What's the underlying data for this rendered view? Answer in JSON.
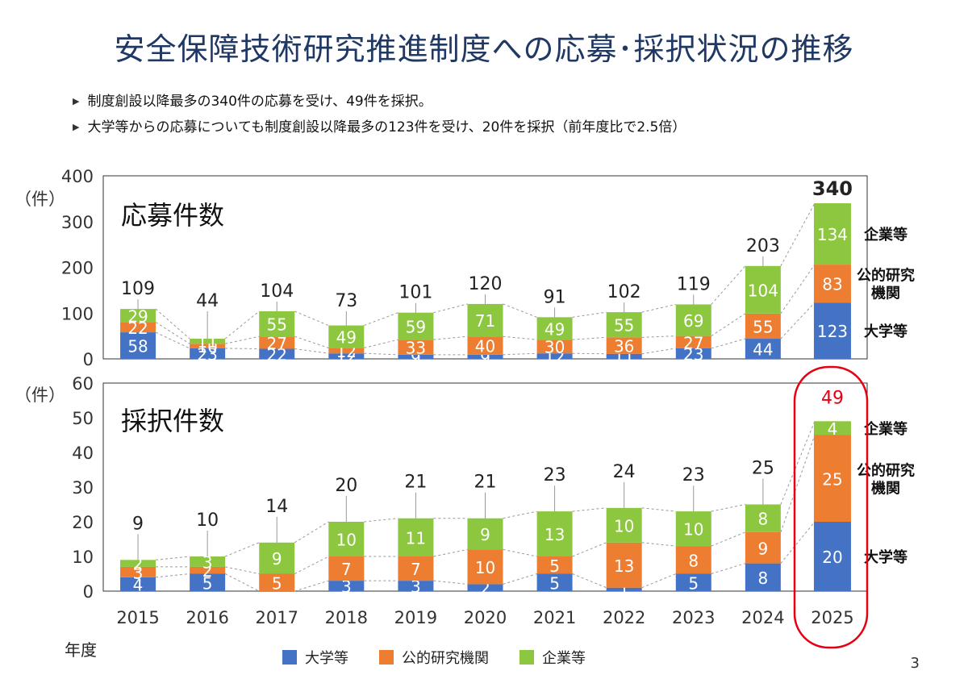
{
  "title": "安全保障技術研究推進制度への応募･採択状況の推移",
  "bullets": [
    "制度創設以降最多の340件の応募を受け、49件を採択。",
    "大学等からの応募についても制度創設以降最多の123件を受け、20件を採択（前年度比で2.5倍）"
  ],
  "xaxis_caption": "年度",
  "page_number": "3",
  "colors": {
    "university": "#4472C4",
    "public": "#ED7D31",
    "company": "#8DC63F",
    "highlight": "#E60012"
  },
  "legend": [
    "大学等",
    "公的研究機関",
    "企業等"
  ],
  "chart_data": [
    {
      "type": "bar",
      "stacked": true,
      "title": "応募件数",
      "ylabel": "（件）",
      "ylim": [
        0,
        400
      ],
      "yticks": [
        "0",
        "100",
        "200",
        "300",
        "400"
      ],
      "categories": [
        "2015",
        "2016",
        "2017",
        "2018",
        "2019",
        "2020",
        "2021",
        "2022",
        "2023",
        "2024",
        "2025"
      ],
      "series": [
        {
          "name": "大学等",
          "values": [
            58,
            23,
            22,
            12,
            9,
            9,
            12,
            11,
            23,
            44,
            123
          ]
        },
        {
          "name": "公的研究機関",
          "values": [
            22,
            10,
            27,
            12,
            33,
            40,
            30,
            36,
            27,
            55,
            83
          ]
        },
        {
          "name": "企業等",
          "values": [
            29,
            11,
            55,
            49,
            59,
            71,
            49,
            55,
            69,
            104,
            134
          ]
        }
      ],
      "totals": [
        109,
        44,
        104,
        73,
        101,
        120,
        91,
        102,
        119,
        203,
        340
      ],
      "side_labels": [
        "企業等",
        "公的研究\n機関",
        "大学等"
      ]
    },
    {
      "type": "bar",
      "stacked": true,
      "title": "採択件数",
      "ylabel": "（件）",
      "ylim": [
        0,
        60
      ],
      "yticks": [
        "0",
        "10",
        "20",
        "30",
        "40",
        "50",
        "60"
      ],
      "categories": [
        "2015",
        "2016",
        "2017",
        "2018",
        "2019",
        "2020",
        "2021",
        "2022",
        "2023",
        "2024",
        "2025"
      ],
      "series": [
        {
          "name": "大学等",
          "values": [
            4,
            5,
            0,
            3,
            3,
            2,
            5,
            1,
            5,
            8,
            20
          ]
        },
        {
          "name": "公的研究機関",
          "values": [
            3,
            2,
            5,
            7,
            7,
            10,
            5,
            13,
            8,
            9,
            25
          ]
        },
        {
          "name": "企業等",
          "values": [
            2,
            3,
            9,
            10,
            11,
            9,
            13,
            10,
            10,
            8,
            4
          ]
        }
      ],
      "totals": [
        9,
        10,
        14,
        20,
        21,
        21,
        23,
        24,
        23,
        25,
        49
      ],
      "side_labels": [
        "企業等",
        "公的研究\n機関",
        "大学等"
      ]
    }
  ]
}
